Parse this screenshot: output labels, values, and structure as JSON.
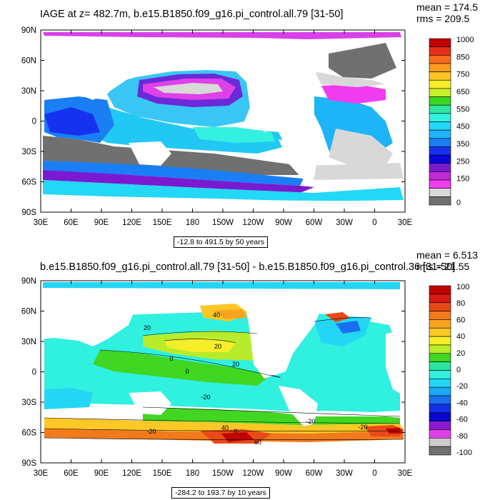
{
  "panels": [
    {
      "title": "IAGE at z= 482.7m, b.e15.B1850.f09_g16.pi_control.all.79 [31-50]",
      "mean": "mean = 174.5",
      "rms": "rms = 209.5",
      "range": "-12.8 to 491.5 by 50 years",
      "colorbar_labels": [
        "1000",
        "850",
        "750",
        "650",
        "550",
        "450",
        "350",
        "250",
        "150",
        "0"
      ],
      "colorbar_colors": [
        "#c10000",
        "#e82e16",
        "#f86a1c",
        "#fa9a1e",
        "#fbc425",
        "#f7ee2a",
        "#c8ee2a",
        "#38d820",
        "#2ee6a0",
        "#34f2e2",
        "#22d8f6",
        "#1eb4f8",
        "#1a7ef4",
        "#1632f0",
        "#0808d8",
        "#7a1ad0",
        "#c02ad8",
        "#f03cf0",
        "#d8d8d8",
        "#707070"
      ],
      "contour_labels": []
    },
    {
      "title": "b.e15.B1850.f09_g16.pi_control.all.79 [31-50] - b.e15.B1850.f09_g16.pi_control.36 [31-50]",
      "mean": "mean = 6.513",
      "rms": "rms = 21.55",
      "range": "-284.2 to 193.7 by 10 years",
      "colorbar_labels": [
        "100",
        "80",
        "60",
        "40",
        "20",
        "0",
        "-20",
        "-40",
        "-60",
        "-80",
        "-100"
      ],
      "colorbar_colors": [
        "#c10000",
        "#d81a10",
        "#e84a18",
        "#f07a1c",
        "#f8a420",
        "#fbc825",
        "#f6ee2a",
        "#b8ec2a",
        "#40d622",
        "#2ce4a0",
        "#30f0e0",
        "#22d6f4",
        "#1ca8f6",
        "#1870f0",
        "#1430e8",
        "#0808d0",
        "#8a1ad0",
        "#e040e8",
        "#cccccc",
        "#707070"
      ],
      "contour_labels": [
        "40",
        "20",
        "20",
        "0",
        "20",
        "0",
        "-20",
        "0",
        "-20",
        "40",
        "60",
        "-20",
        "-20"
      ]
    }
  ],
  "axes": {
    "lat_labels": [
      "90N",
      "60N",
      "30N",
      "0",
      "30S",
      "60S",
      "90S"
    ],
    "lon_labels": [
      "30E",
      "60E",
      "90E",
      "120E",
      "150E",
      "180",
      "150W",
      "120W",
      "90W",
      "60W",
      "30W",
      "0",
      "30E"
    ]
  }
}
